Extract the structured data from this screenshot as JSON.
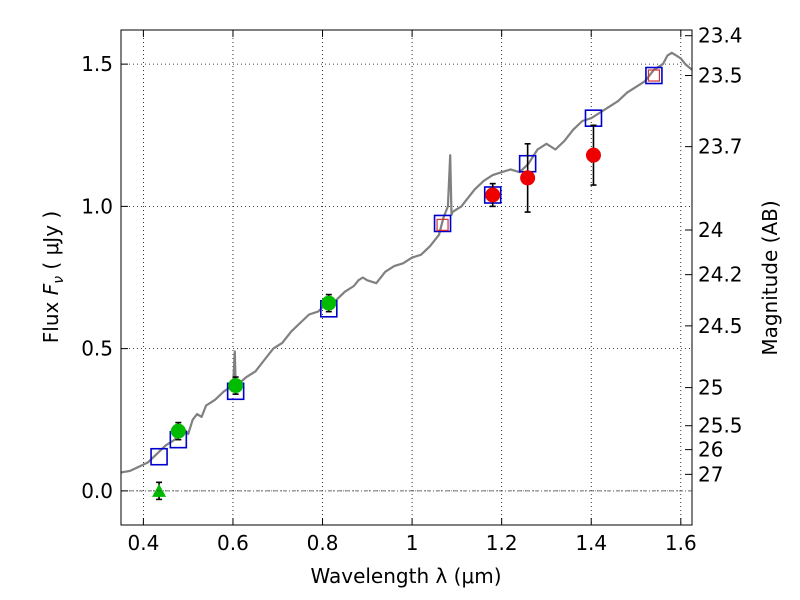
{
  "chart_data": {
    "type": "scatter",
    "xlabel": "Wavelength  λ (μm)",
    "ylabel": "Flux  F_ν  ( μJy )",
    "ylabel_parts": {
      "prefix": "Flux  ",
      "symbol": "F",
      "subscript": "ν",
      "suffix": "  ( μJy )"
    },
    "y2label": "Magnitude (AB)",
    "xlim": [
      0.35,
      1.625
    ],
    "ylim": [
      -0.12,
      1.62
    ],
    "xticks": [
      0.4,
      0.6,
      0.8,
      1.0,
      1.2,
      1.4,
      1.6
    ],
    "xtick_labels": [
      "0.4",
      "0.6",
      "0.8",
      "1",
      "1.2",
      "1.4",
      "1.6"
    ],
    "yticks": [
      0.0,
      0.5,
      1.0,
      1.5
    ],
    "ytick_labels": [
      "0.0",
      "0.5",
      "1.0",
      "1.5"
    ],
    "magnitude_ticks": [
      {
        "label": "23.4",
        "flux": 1.6
      },
      {
        "label": "23.5",
        "flux": 1.46
      },
      {
        "label": "23.7",
        "flux": 1.21
      },
      {
        "label": "24",
        "flux": 0.917
      },
      {
        "label": "24.2",
        "flux": 0.76
      },
      {
        "label": "24.5",
        "flux": 0.58
      },
      {
        "label": "25",
        "flux": 0.363
      },
      {
        "label": "25.5",
        "flux": 0.229
      },
      {
        "label": "26",
        "flux": 0.145
      },
      {
        "label": "27",
        "flux": 0.058
      }
    ],
    "grid": true,
    "series": [
      {
        "name": "model spectrum",
        "kind": "line",
        "color": "#808080",
        "x": [
          0.35,
          0.37,
          0.39,
          0.41,
          0.43,
          0.45,
          0.47,
          0.48,
          0.49,
          0.5,
          0.51,
          0.52,
          0.53,
          0.54,
          0.55,
          0.56,
          0.57,
          0.58,
          0.59,
          0.6,
          0.604,
          0.606,
          0.608,
          0.615,
          0.63,
          0.65,
          0.67,
          0.69,
          0.71,
          0.73,
          0.75,
          0.77,
          0.79,
          0.81,
          0.83,
          0.85,
          0.87,
          0.88,
          0.89,
          0.9,
          0.92,
          0.94,
          0.96,
          0.98,
          1.0,
          1.02,
          1.04,
          1.06,
          1.07,
          1.08,
          1.085,
          1.088,
          1.09,
          1.1,
          1.11,
          1.12,
          1.14,
          1.16,
          1.18,
          1.2,
          1.22,
          1.24,
          1.26,
          1.28,
          1.3,
          1.32,
          1.34,
          1.36,
          1.38,
          1.4,
          1.42,
          1.44,
          1.46,
          1.48,
          1.5,
          1.52,
          1.54,
          1.56,
          1.57,
          1.58,
          1.59,
          1.6,
          1.61,
          1.625
        ],
        "y": [
          0.065,
          0.07,
          0.085,
          0.1,
          0.13,
          0.16,
          0.18,
          0.2,
          0.22,
          0.2,
          0.25,
          0.27,
          0.26,
          0.3,
          0.31,
          0.32,
          0.335,
          0.35,
          0.36,
          0.365,
          0.49,
          0.38,
          0.37,
          0.38,
          0.4,
          0.42,
          0.46,
          0.5,
          0.52,
          0.56,
          0.59,
          0.62,
          0.63,
          0.66,
          0.67,
          0.7,
          0.72,
          0.74,
          0.75,
          0.74,
          0.73,
          0.77,
          0.79,
          0.8,
          0.82,
          0.83,
          0.86,
          0.9,
          0.96,
          1.0,
          1.18,
          0.97,
          0.98,
          0.99,
          1.0,
          1.02,
          1.06,
          1.09,
          1.11,
          1.12,
          1.13,
          1.12,
          1.15,
          1.2,
          1.22,
          1.2,
          1.23,
          1.27,
          1.3,
          1.31,
          1.33,
          1.35,
          1.37,
          1.4,
          1.42,
          1.44,
          1.48,
          1.5,
          1.53,
          1.54,
          1.53,
          1.52,
          1.5,
          1.48
        ]
      },
      {
        "name": "model photometry",
        "kind": "open-square",
        "color": "#0000cc",
        "x": [
          0.435,
          0.478,
          0.606,
          0.814,
          1.068,
          1.18,
          1.258,
          1.405,
          1.54
        ],
        "y": [
          0.12,
          0.18,
          0.35,
          0.64,
          0.94,
          1.04,
          1.15,
          1.31,
          1.46
        ]
      },
      {
        "name": "optical detections",
        "kind": "filled-circle",
        "color": "#00bb00",
        "x": [
          0.478,
          0.606,
          0.814
        ],
        "y": [
          0.21,
          0.37,
          0.66
        ],
        "err": [
          0.03,
          0.03,
          0.03
        ]
      },
      {
        "name": "upper limit",
        "kind": "triangle",
        "color": "#00bb00",
        "x": [
          0.435
        ],
        "y": [
          0.0
        ],
        "err": [
          0.03
        ]
      },
      {
        "name": "near-IR detections",
        "kind": "filled-circle",
        "color": "#ee0000",
        "x": [
          1.18,
          1.258,
          1.405
        ],
        "y": [
          1.04,
          1.1,
          1.18
        ],
        "err": [
          0.04,
          0.12,
          0.105
        ]
      },
      {
        "name": "near-IR small points",
        "kind": "small-square",
        "color": "#cc3333",
        "x": [
          1.068,
          1.54
        ],
        "y": [
          0.935,
          1.46
        ]
      }
    ]
  }
}
